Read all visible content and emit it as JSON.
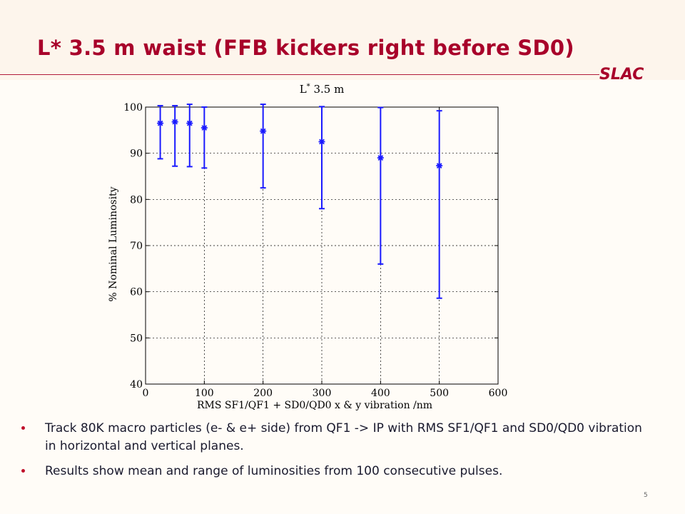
{
  "slide": {
    "title": "L* 3.5 m waist (FFB kickers right before SD0)",
    "logo_text": "SLAC",
    "page_number": "5",
    "bullets": [
      "Track 80K macro particles (e- & e+ side) from QF1 -> IP with RMS SF1/QF1 and SD0/QD0 vibration in horizontal and vertical planes.",
      "Results show mean and range of luminosities from 100 consecutive pulses."
    ],
    "colors": {
      "title": "#a8002a",
      "marker": "#1a1aff",
      "bullet": "#c0102a"
    }
  },
  "chart_data": {
    "type": "scatter",
    "title_main": "L",
    "title_sup": "*",
    "title_rest": " 3.5 m",
    "xlabel": "RMS SF1/QF1 + SD0/QD0 x & y vibration /nm",
    "ylabel": "% Nominal Luminosity",
    "xlim": [
      0,
      600
    ],
    "ylim": [
      40,
      100
    ],
    "xticks": [
      0,
      100,
      200,
      300,
      400,
      500,
      600
    ],
    "yticks": [
      40,
      50,
      60,
      70,
      80,
      90,
      100
    ],
    "grid": true,
    "marker": "asterisk with error bars",
    "points": [
      {
        "x": 25,
        "y": 96.5,
        "ymin": 88.8,
        "ymax": 100.3
      },
      {
        "x": 50,
        "y": 96.8,
        "ymin": 87.2,
        "ymax": 100.3
      },
      {
        "x": 75,
        "y": 96.5,
        "ymin": 87.1,
        "ymax": 100.6
      },
      {
        "x": 100,
        "y": 95.5,
        "ymin": 86.8,
        "ymax": 100.0
      },
      {
        "x": 200,
        "y": 94.8,
        "ymin": 82.5,
        "ymax": 100.6
      },
      {
        "x": 300,
        "y": 92.5,
        "ymin": 78.0,
        "ymax": 100.1
      },
      {
        "x": 400,
        "y": 89.0,
        "ymin": 66.0,
        "ymax": 99.9
      },
      {
        "x": 500,
        "y": 87.3,
        "ymin": 58.6,
        "ymax": 99.2
      }
    ]
  }
}
